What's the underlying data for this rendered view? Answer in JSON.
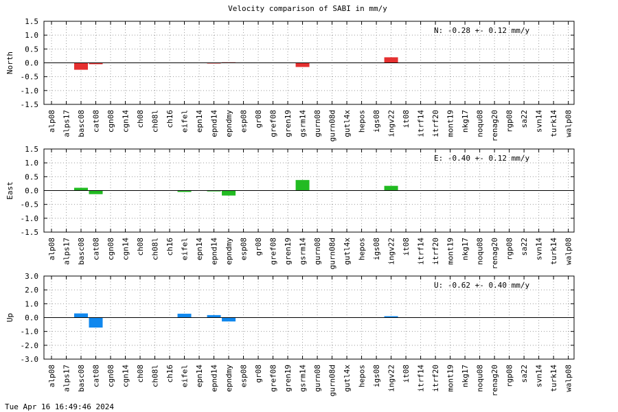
{
  "title": "Velocity comparison of SABI in mm/y",
  "timestamp": "Tue Apr 16 16:49:46 2024",
  "chart_data": {
    "type": "bar",
    "title": "Velocity comparison of SABI in mm/y",
    "grid": true,
    "categories": [
      "alp08",
      "alps17",
      "basc08",
      "cat08",
      "cgn08",
      "cgn14",
      "ch08",
      "ch08l",
      "ch16",
      "eifel",
      "epn14",
      "epnd14",
      "epndmy",
      "esp08",
      "gr08",
      "gref08",
      "gren19",
      "gsrm14",
      "gurn08",
      "gurn08d",
      "gutl4x",
      "hepos",
      "igs08",
      "ingv22",
      "it08",
      "itrf14",
      "itrf20",
      "mont19",
      "nkg17",
      "noqu08",
      "renag20",
      "rgp08",
      "sa22",
      "svn14",
      "turk14",
      "walp08"
    ],
    "panels": [
      {
        "ylabel": "North",
        "ylim": [
          -1.5,
          1.5
        ],
        "yticks": [
          -1.5,
          -1.0,
          -0.5,
          0.0,
          0.5,
          1.0,
          1.5
        ],
        "tick_labels": [
          "-1.5",
          "-1.0",
          "-0.5",
          "0.0",
          "0.5",
          "1.0",
          "1.5"
        ],
        "color": "#e53030",
        "annotation": "N:  -0.28 +-  0.12 mm/y",
        "values": [
          null,
          null,
          -0.25,
          -0.05,
          null,
          null,
          null,
          null,
          null,
          null,
          null,
          -0.02,
          0.02,
          null,
          null,
          null,
          null,
          -0.15,
          null,
          null,
          null,
          null,
          null,
          0.2,
          null,
          null,
          null,
          null,
          null,
          null,
          null,
          null,
          null,
          null,
          null,
          null
        ]
      },
      {
        "ylabel": "East",
        "ylim": [
          -1.5,
          1.5
        ],
        "yticks": [
          -1.5,
          -1.0,
          -0.5,
          0.0,
          0.5,
          1.0,
          1.5
        ],
        "tick_labels": [
          "-1.5",
          "-1.0",
          "-0.5",
          "0.0",
          "0.5",
          "1.0",
          "1.5"
        ],
        "color": "#22bb22",
        "annotation": "E:  -0.40 +-  0.12 mm/y",
        "values": [
          null,
          null,
          0.1,
          -0.13,
          null,
          null,
          null,
          null,
          null,
          -0.05,
          null,
          -0.03,
          -0.18,
          null,
          null,
          null,
          null,
          0.38,
          null,
          null,
          null,
          null,
          null,
          0.17,
          null,
          null,
          null,
          null,
          null,
          null,
          null,
          null,
          null,
          null,
          null,
          null
        ]
      },
      {
        "ylabel": "Up",
        "ylim": [
          -3.0,
          3.0
        ],
        "yticks": [
          -3.0,
          -2.0,
          -1.0,
          0.0,
          1.0,
          2.0,
          3.0
        ],
        "tick_labels": [
          "-3.0",
          "-2.0",
          "-1.0",
          "0.0",
          "1.0",
          "2.0",
          "3.0"
        ],
        "color": "#1188ee",
        "annotation": "U:  -0.62 +-  0.40 mm/y",
        "values": [
          null,
          null,
          0.3,
          -0.72,
          null,
          null,
          null,
          null,
          null,
          0.28,
          null,
          0.18,
          -0.28,
          null,
          null,
          null,
          null,
          null,
          null,
          null,
          null,
          null,
          null,
          0.1,
          null,
          null,
          null,
          null,
          null,
          null,
          null,
          null,
          null,
          null,
          null,
          null
        ]
      }
    ]
  }
}
